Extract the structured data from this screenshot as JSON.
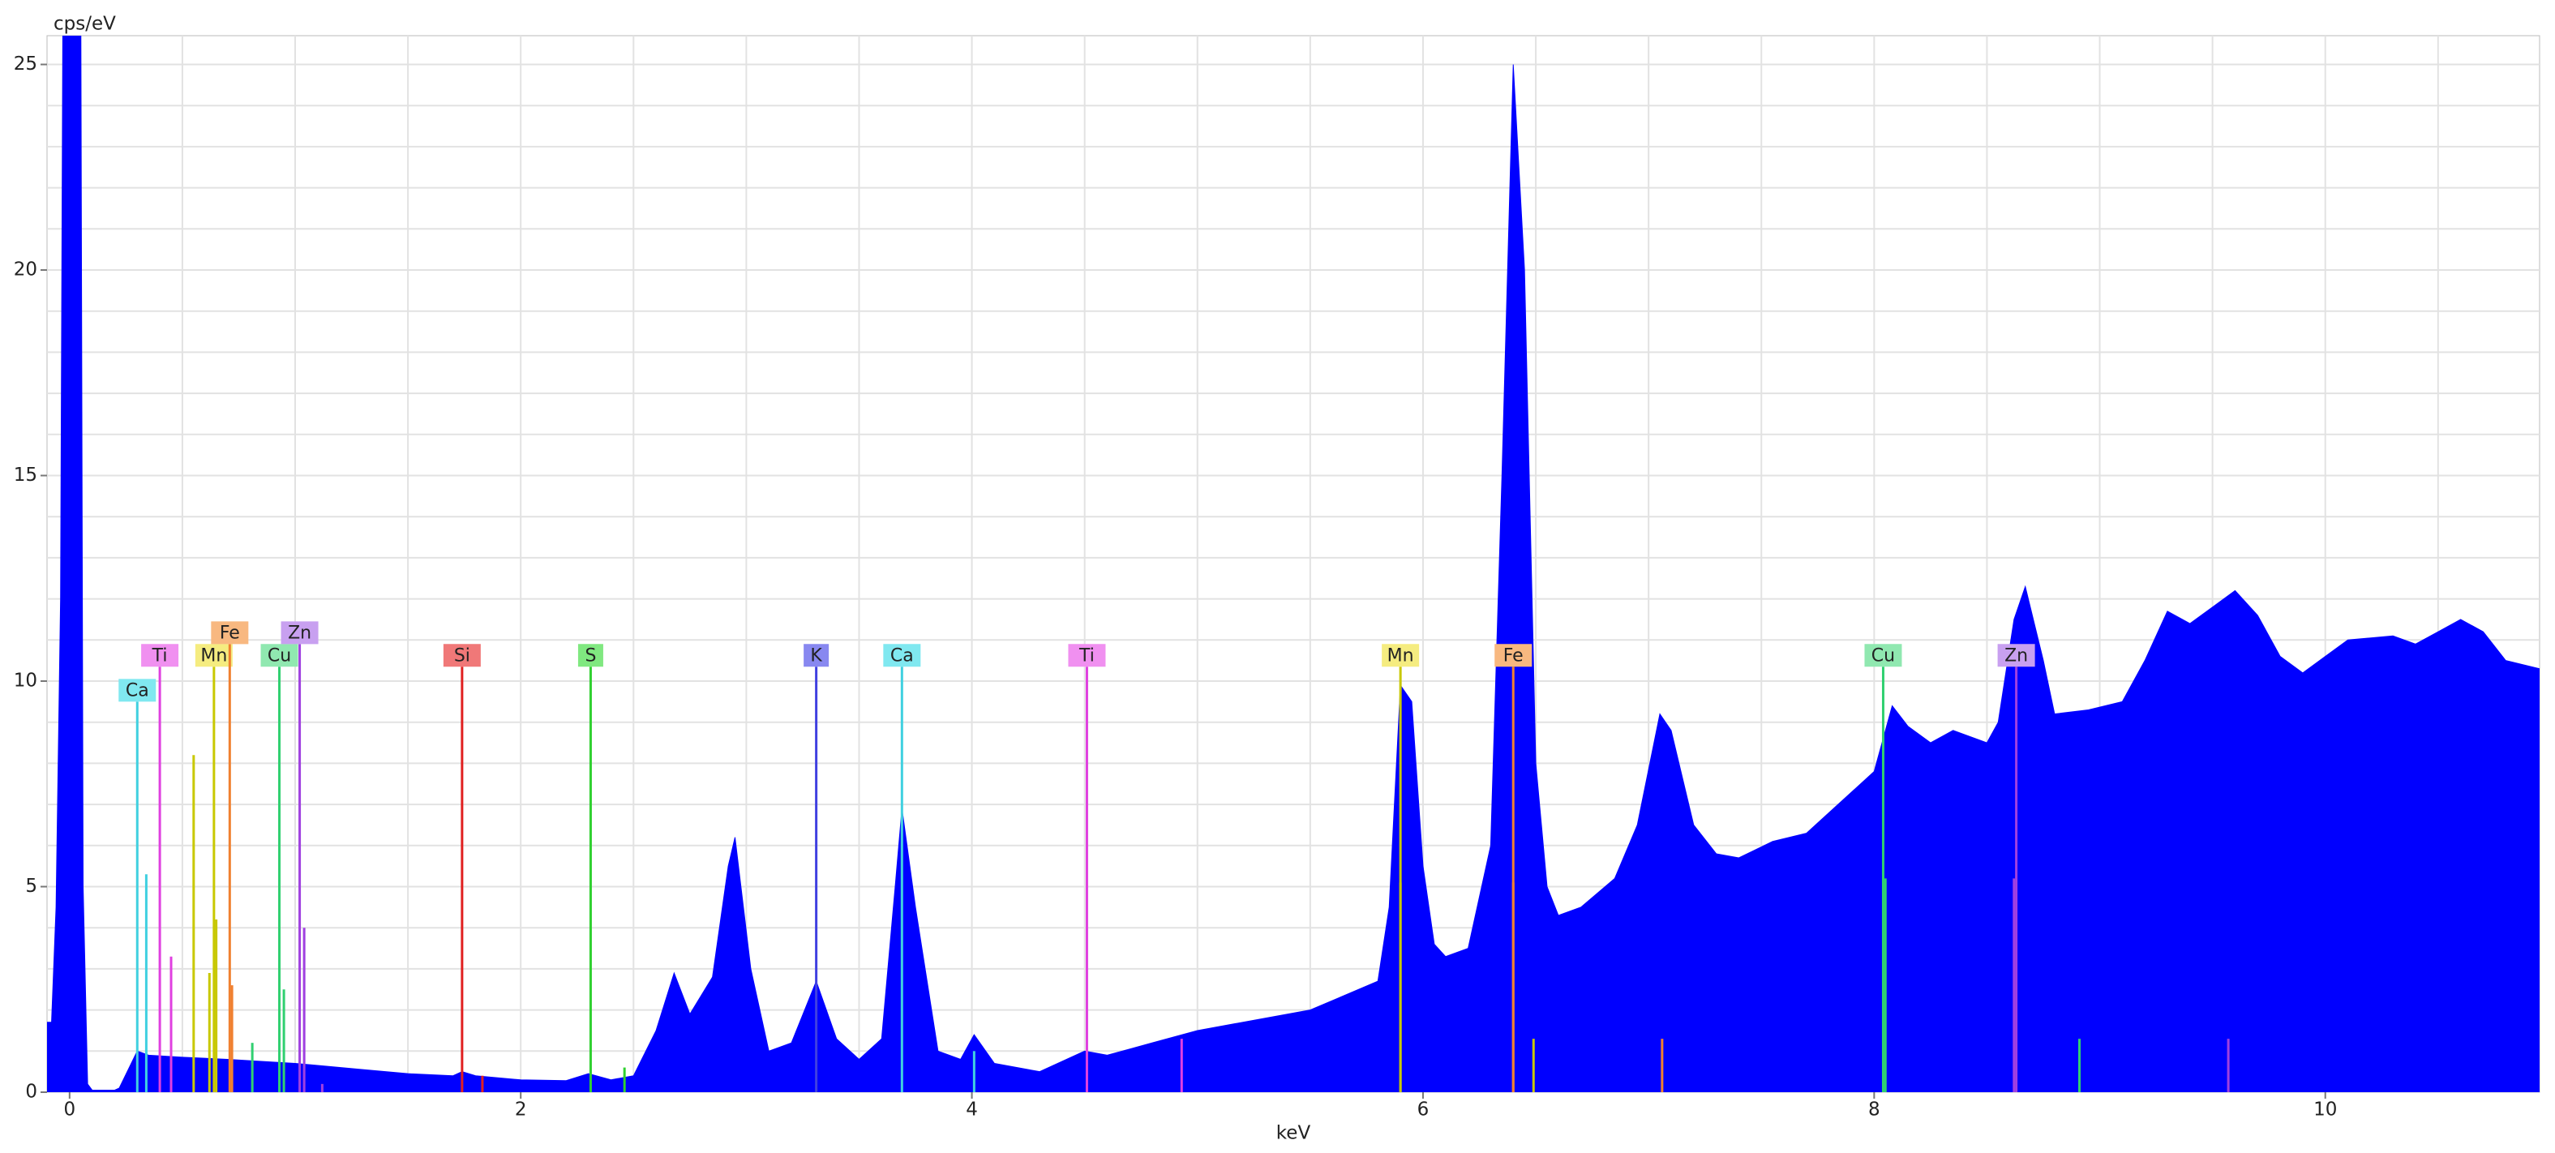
{
  "chart_data": {
    "type": "area",
    "x_label": "keV",
    "y_label": "cps/eV",
    "color": "#0000ff",
    "xlim": [
      -0.1,
      10.95
    ],
    "ylim": [
      0,
      25.7
    ],
    "xticks": [
      0,
      2,
      4,
      6,
      8,
      10
    ],
    "yticks": [
      0,
      5,
      10,
      15,
      20,
      25
    ],
    "grid": true,
    "grid_step_x": 0.5,
    "grid_step_y": 1,
    "x": [
      -0.1,
      -0.08,
      -0.06,
      -0.04,
      -0.03,
      0.05,
      0.06,
      0.08,
      0.1,
      0.2,
      0.22,
      0.3,
      0.35,
      0.5,
      0.7,
      1.0,
      1.3,
      1.5,
      1.7,
      1.74,
      1.8,
      2.0,
      2.2,
      2.3,
      2.4,
      2.5,
      2.6,
      2.68,
      2.75,
      2.85,
      2.92,
      2.95,
      3.02,
      3.1,
      3.2,
      3.31,
      3.4,
      3.5,
      3.6,
      3.66,
      3.69,
      3.75,
      3.85,
      3.95,
      4.01,
      4.1,
      4.3,
      4.5,
      4.6,
      4.8,
      5.0,
      5.5,
      5.8,
      5.85,
      5.9,
      5.95,
      6.0,
      6.05,
      6.1,
      6.2,
      6.3,
      6.35,
      6.4,
      6.45,
      6.5,
      6.55,
      6.6,
      6.7,
      6.85,
      6.95,
      7.05,
      7.1,
      7.2,
      7.3,
      7.4,
      7.55,
      7.7,
      7.9,
      8.0,
      8.08,
      8.15,
      8.25,
      8.35,
      8.5,
      8.55,
      8.62,
      8.67,
      8.75,
      8.8,
      8.95,
      9.1,
      9.2,
      9.3,
      9.4,
      9.5,
      9.6,
      9.7,
      9.8,
      9.9,
      10.0,
      10.1,
      10.3,
      10.4,
      10.5,
      10.6,
      10.7,
      10.8,
      10.95
    ],
    "values": [
      1.7,
      1.7,
      4.5,
      12,
      26,
      26,
      5,
      0.2,
      0.05,
      0.05,
      0.1,
      1.0,
      0.9,
      0.85,
      0.8,
      0.7,
      0.55,
      0.45,
      0.4,
      0.5,
      0.4,
      0.3,
      0.28,
      0.45,
      0.3,
      0.4,
      1.5,
      2.9,
      1.9,
      2.8,
      5.5,
      6.2,
      3.0,
      1.0,
      1.2,
      2.7,
      1.3,
      0.8,
      1.3,
      5.0,
      6.9,
      4.5,
      1.0,
      0.8,
      1.4,
      0.7,
      0.5,
      1.0,
      0.9,
      1.2,
      1.5,
      2.0,
      2.7,
      4.5,
      9.9,
      9.5,
      5.5,
      3.6,
      3.3,
      3.5,
      6.0,
      15,
      25.0,
      20,
      8,
      5,
      4.3,
      4.5,
      5.2,
      6.5,
      9.2,
      8.8,
      6.5,
      5.8,
      5.7,
      6.1,
      6.3,
      7.3,
      7.8,
      9.4,
      8.9,
      8.5,
      8.8,
      8.5,
      9.0,
      11.5,
      12.3,
      10.5,
      9.2,
      9.3,
      9.5,
      10.5,
      11.7,
      11.4,
      11.8,
      12.2,
      11.6,
      10.6,
      10.2,
      10.6,
      11.0,
      11.1,
      10.9,
      11.2,
      11.5,
      11.2,
      10.5,
      10.3
    ],
    "markers": [
      {
        "label": "Ca",
        "x": 0.3,
        "height": 9.5,
        "color": "#40d0e0",
        "label_color": "#80e8f0"
      },
      {
        "label": "Ti",
        "x": 0.4,
        "height": 10.35,
        "color": "#e040e0",
        "label_color": "#f090f0"
      },
      {
        "label": "Mn",
        "x": 0.64,
        "height": 10.35,
        "color": "#c8c800",
        "label_color": "#f5ec80"
      },
      {
        "label": "Fe",
        "x": 0.71,
        "height": 10.9,
        "color": "#f08030",
        "label_color": "#f8b880"
      },
      {
        "label": "Cu",
        "x": 0.93,
        "height": 10.35,
        "color": "#30d070",
        "label_color": "#90e8b0"
      },
      {
        "label": "Zn",
        "x": 1.02,
        "height": 10.9,
        "color": "#a040e0",
        "label_color": "#c8a0f0"
      },
      {
        "label": "Si",
        "x": 1.74,
        "height": 10.35,
        "color": "#e02020",
        "label_color": "#f07878"
      },
      {
        "label": "S",
        "x": 2.31,
        "height": 10.35,
        "color": "#30d030",
        "label_color": "#80e880"
      },
      {
        "label": "K",
        "x": 3.31,
        "height": 10.35,
        "color": "#4040e0",
        "label_color": "#8888f0"
      },
      {
        "label": "Ca",
        "x": 3.69,
        "height": 10.35,
        "color": "#40d0e0",
        "label_color": "#80e8f0"
      },
      {
        "label": "Ti",
        "x": 4.51,
        "height": 10.35,
        "color": "#e040e0",
        "label_color": "#f090f0"
      },
      {
        "label": "Mn",
        "x": 5.9,
        "height": 10.35,
        "color": "#c8c800",
        "label_color": "#f5ec80"
      },
      {
        "label": "Fe",
        "x": 6.4,
        "height": 10.35,
        "color": "#f08030",
        "label_color": "#f8b880"
      },
      {
        "label": "Cu",
        "x": 8.04,
        "height": 10.35,
        "color": "#30d070",
        "label_color": "#90e8b0"
      },
      {
        "label": "Zn",
        "x": 8.63,
        "height": 10.35,
        "color": "#a040e0",
        "label_color": "#c8a0f0"
      }
    ],
    "lines": [
      {
        "x": 0.34,
        "height": 5.3,
        "color": "#40d0e0"
      },
      {
        "x": 0.45,
        "height": 3.3,
        "color": "#e040e0"
      },
      {
        "x": 0.55,
        "height": 8.2,
        "color": "#c8c800"
      },
      {
        "x": 0.62,
        "height": 2.9,
        "color": "#c8c800"
      },
      {
        "x": 0.65,
        "height": 4.2,
        "color": "#c8c800"
      },
      {
        "x": 0.72,
        "height": 2.6,
        "color": "#f08030"
      },
      {
        "x": 0.81,
        "height": 1.2,
        "color": "#30d070"
      },
      {
        "x": 0.95,
        "height": 2.5,
        "color": "#30d070"
      },
      {
        "x": 1.04,
        "height": 4.0,
        "color": "#a040e0"
      },
      {
        "x": 1.12,
        "height": 0.2,
        "color": "#a040e0"
      },
      {
        "x": 1.83,
        "height": 0.4,
        "color": "#e02020"
      },
      {
        "x": 2.46,
        "height": 0.6,
        "color": "#30d030"
      },
      {
        "x": 4.01,
        "height": 1.0,
        "color": "#40d0e0"
      },
      {
        "x": 4.93,
        "height": 1.3,
        "color": "#e040e0"
      },
      {
        "x": 5.9,
        "height": 5.1,
        "color": "#c8c800"
      },
      {
        "x": 6.49,
        "height": 1.3,
        "color": "#c8c800"
      },
      {
        "x": 6.4,
        "height": 5.1,
        "color": "#f08030"
      },
      {
        "x": 7.06,
        "height": 1.3,
        "color": "#f08030"
      },
      {
        "x": 8.05,
        "height": 5.2,
        "color": "#30d070"
      },
      {
        "x": 8.91,
        "height": 1.3,
        "color": "#30d070"
      },
      {
        "x": 8.62,
        "height": 5.2,
        "color": "#a040e0"
      },
      {
        "x": 9.57,
        "height": 1.3,
        "color": "#a040e0"
      }
    ]
  }
}
